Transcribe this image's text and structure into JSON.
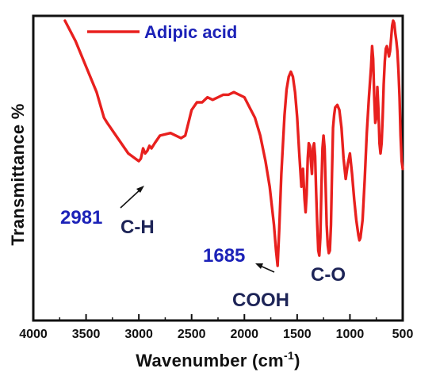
{
  "colors": {
    "series": "#e8201e",
    "axis": "#111111",
    "annotation_number": "#1c22b8",
    "annotation_label": "#1d2457",
    "legend_text": "#1c22b8"
  },
  "chart_data": {
    "type": "line",
    "title": "",
    "xlabel": "Wavenumber (cm",
    "xlabel_superscript": "-1",
    "xlabel_suffix": ")",
    "ylabel": "Transmittance %",
    "xlim": [
      4000,
      500
    ],
    "x_reversed": true,
    "xticks": [
      4000,
      3500,
      3000,
      2500,
      2000,
      1500,
      1000,
      500
    ],
    "y_ticks_shown": false,
    "ylim": [
      0,
      100
    ],
    "grid": false,
    "legend": {
      "position": "top-left",
      "entries": [
        "Adipic acid"
      ]
    },
    "series": [
      {
        "name": "Adipic acid",
        "x": [
          3700,
          3600,
          3500,
          3400,
          3330,
          3300,
          3200,
          3100,
          3000,
          2981,
          2960,
          2940,
          2920,
          2900,
          2880,
          2850,
          2800,
          2700,
          2600,
          2560,
          2500,
          2450,
          2400,
          2350,
          2300,
          2250,
          2200,
          2150,
          2100,
          2050,
          2000,
          1950,
          1900,
          1850,
          1800,
          1760,
          1720,
          1700,
          1685,
          1670,
          1650,
          1620,
          1600,
          1580,
          1560,
          1540,
          1520,
          1500,
          1480,
          1460,
          1445,
          1430,
          1420,
          1410,
          1400,
          1390,
          1380,
          1370,
          1360,
          1350,
          1340,
          1330,
          1320,
          1310,
          1300,
          1290,
          1280,
          1270,
          1260,
          1250,
          1240,
          1230,
          1220,
          1210,
          1200,
          1190,
          1180,
          1170,
          1160,
          1150,
          1140,
          1120,
          1100,
          1080,
          1060,
          1040,
          1020,
          1000,
          980,
          960,
          940,
          920,
          910,
          900,
          880,
          860,
          840,
          820,
          800,
          790,
          780,
          770,
          760,
          750,
          740,
          730,
          720,
          710,
          700,
          690,
          680,
          670,
          660,
          650,
          640,
          630,
          620,
          610,
          600,
          590,
          580,
          570,
          560,
          550,
          540,
          530,
          520,
          510,
          500
        ],
        "y": [
          100,
          92,
          82,
          72,
          62,
          60,
          54,
          48,
          45,
          46,
          50,
          48,
          49,
          51,
          50,
          52,
          55,
          56,
          54,
          55,
          65,
          68,
          68,
          70,
          69,
          70,
          71,
          71,
          72,
          71,
          70,
          66,
          62,
          55,
          45,
          35,
          20,
          10,
          4,
          18,
          40,
          63,
          73,
          78,
          80,
          78,
          72,
          62,
          48,
          35,
          42,
          30,
          25,
          32,
          46,
          52,
          51,
          45,
          40,
          50,
          52,
          47,
          33,
          20,
          10,
          8,
          15,
          35,
          50,
          55,
          50,
          35,
          20,
          12,
          9,
          10,
          20,
          40,
          58,
          63,
          66,
          67,
          65,
          58,
          46,
          38,
          44,
          48,
          40,
          30,
          22,
          16,
          14,
          15,
          22,
          38,
          56,
          70,
          82,
          90,
          85,
          70,
          60,
          62,
          74,
          65,
          52,
          48,
          52,
          62,
          75,
          84,
          89,
          90,
          88,
          86,
          88,
          93,
          98,
          100,
          99,
          95,
          92,
          88,
          80,
          70,
          55,
          45,
          42
        ]
      }
    ],
    "annotations": [
      {
        "number": "2981",
        "label": "C-H",
        "x": 2981,
        "y": 46
      },
      {
        "number": "1685",
        "label": "COOH",
        "x": 1685,
        "y": 4
      },
      {
        "number": "",
        "label": "C-O",
        "x": 1230,
        "y": 20
      }
    ]
  }
}
